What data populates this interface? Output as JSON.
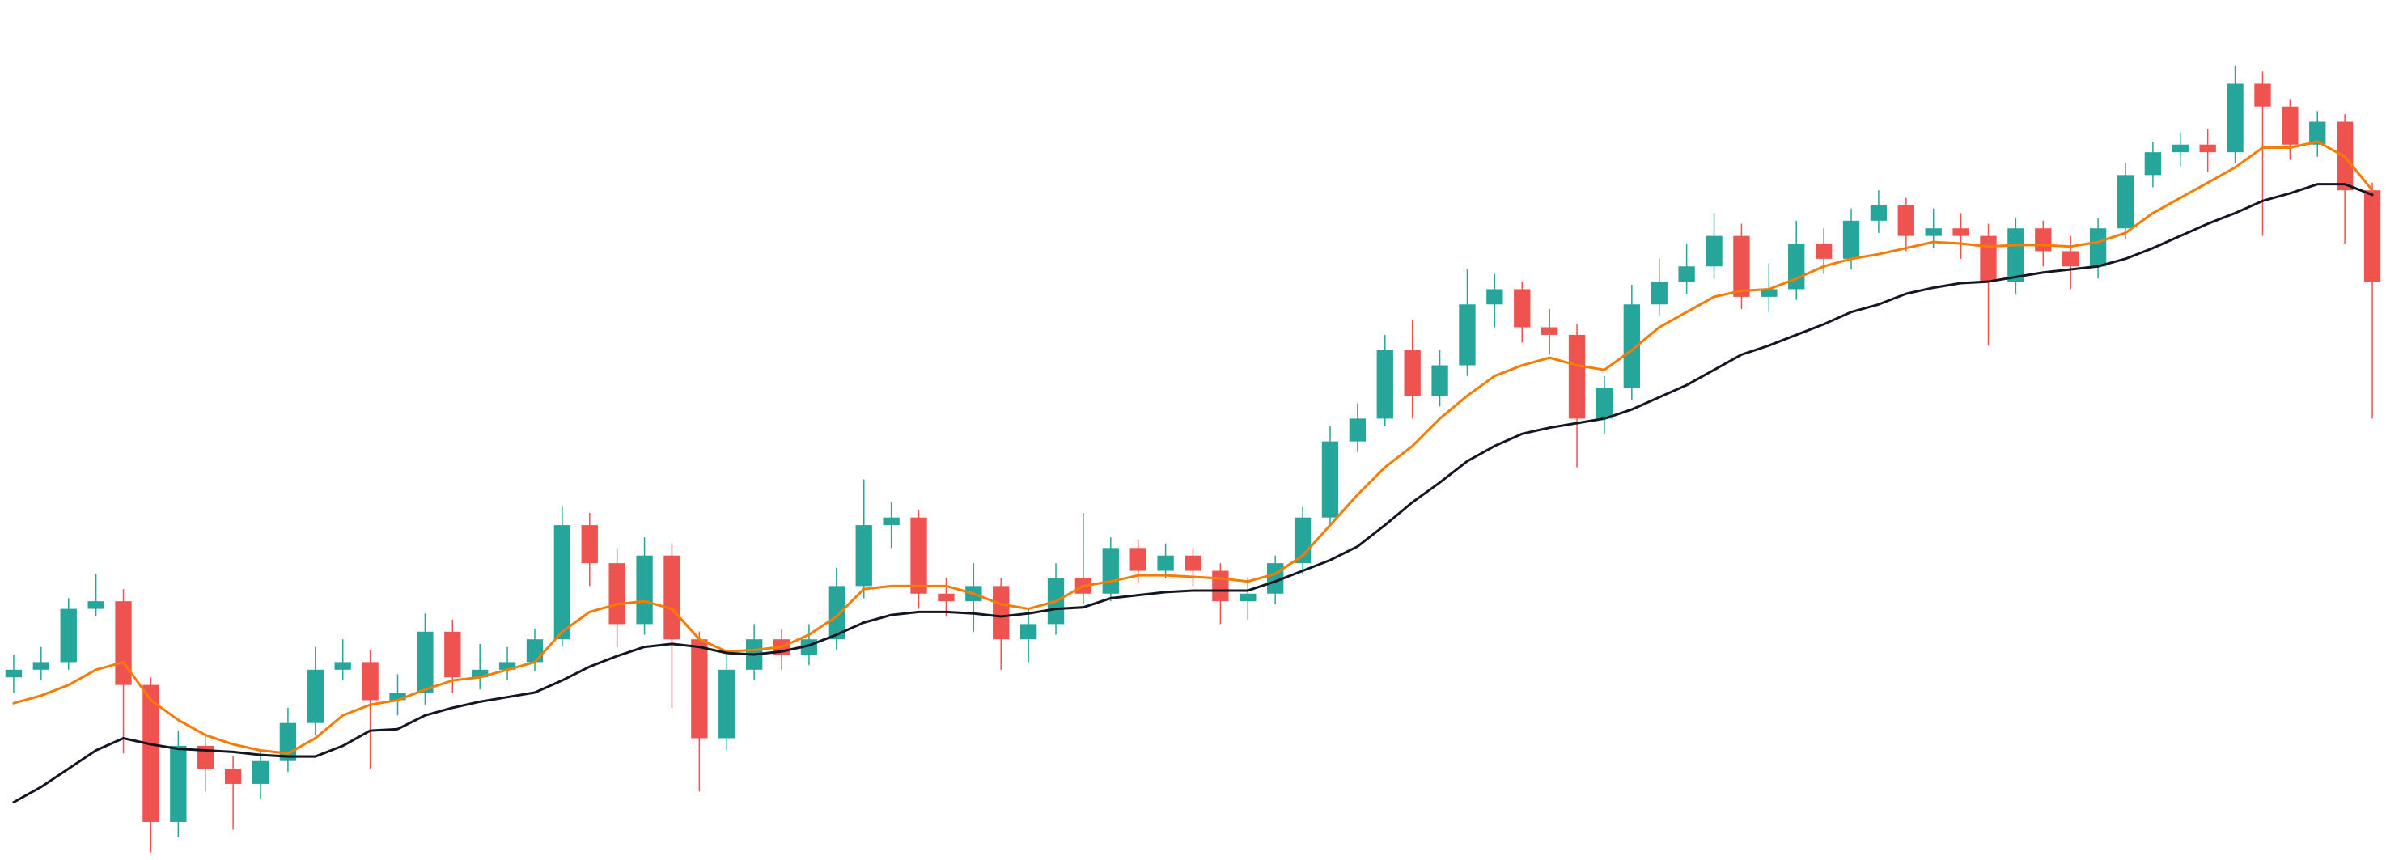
{
  "chart_data": {
    "type": "candlestick",
    "ylim": [
      0,
      565
    ],
    "up_color": "#26a69a",
    "down_color": "#ef5350",
    "open": [
      120,
      125,
      130,
      165,
      170,
      115,
      25,
      75,
      60,
      50,
      65,
      90,
      125,
      130,
      105,
      110,
      150,
      120,
      125,
      130,
      145,
      220,
      195,
      155,
      200,
      145,
      80,
      125,
      145,
      135,
      145,
      180,
      220,
      225,
      175,
      170,
      180,
      145,
      155,
      185,
      175,
      205,
      190,
      200,
      190,
      170,
      175,
      195,
      225,
      275,
      290,
      335,
      305,
      325,
      365,
      375,
      350,
      345,
      290,
      310,
      365,
      380,
      390,
      410,
      370,
      375,
      405,
      395,
      420,
      430,
      410,
      415,
      410,
      380,
      415,
      400,
      390,
      415,
      450,
      465,
      470,
      465,
      510,
      495,
      470,
      485,
      440
    ],
    "high": [
      135,
      140,
      172,
      188,
      178,
      120,
      85,
      82,
      68,
      72,
      100,
      140,
      145,
      138,
      122,
      162,
      158,
      142,
      140,
      152,
      232,
      228,
      205,
      212,
      208,
      150,
      135,
      155,
      152,
      155,
      192,
      250,
      235,
      230,
      185,
      195,
      185,
      165,
      195,
      228,
      212,
      210,
      208,
      205,
      195,
      185,
      200,
      232,
      285,
      300,
      345,
      355,
      335,
      388,
      385,
      380,
      362,
      352,
      318,
      378,
      395,
      405,
      425,
      418,
      392,
      420,
      415,
      428,
      440,
      435,
      428,
      425,
      418,
      422,
      420,
      410,
      422,
      458,
      472,
      478,
      480,
      522,
      518,
      500,
      492,
      490,
      445
    ],
    "low": [
      110,
      118,
      125,
      160,
      70,
      5,
      15,
      45,
      20,
      40,
      58,
      82,
      118,
      60,
      95,
      102,
      110,
      112,
      118,
      124,
      140,
      180,
      140,
      148,
      100,
      45,
      72,
      118,
      125,
      128,
      138,
      172,
      205,
      165,
      160,
      150,
      125,
      130,
      148,
      168,
      170,
      182,
      185,
      180,
      155,
      158,
      168,
      188,
      220,
      268,
      285,
      290,
      298,
      318,
      350,
      340,
      332,
      258,
      280,
      302,
      358,
      372,
      382,
      362,
      360,
      368,
      385,
      388,
      412,
      400,
      402,
      395,
      338,
      372,
      390,
      375,
      382,
      408,
      442,
      455,
      452,
      458,
      410,
      460,
      462,
      405,
      290
    ],
    "close": [
      125,
      130,
      165,
      170,
      115,
      25,
      75,
      60,
      50,
      65,
      90,
      125,
      130,
      105,
      110,
      150,
      120,
      125,
      130,
      145,
      220,
      195,
      155,
      200,
      145,
      80,
      125,
      145,
      135,
      145,
      180,
      220,
      225,
      175,
      170,
      180,
      145,
      155,
      185,
      175,
      205,
      190,
      200,
      190,
      170,
      175,
      195,
      225,
      275,
      290,
      335,
      305,
      325,
      365,
      375,
      350,
      345,
      290,
      310,
      365,
      380,
      390,
      410,
      370,
      375,
      405,
      395,
      420,
      430,
      410,
      415,
      410,
      380,
      415,
      400,
      390,
      415,
      450,
      465,
      470,
      465,
      510,
      495,
      470,
      485,
      440,
      380
    ],
    "overlays": [
      {
        "color": "#f57c00",
        "values": [
          103,
          108,
          115,
          125,
          130,
          105,
          92,
          82,
          76,
          72,
          70,
          80,
          95,
          102,
          105,
          112,
          118,
          120,
          125,
          130,
          150,
          163,
          168,
          170,
          165,
          145,
          137,
          138,
          140,
          148,
          160,
          178,
          180,
          180,
          180,
          175,
          168,
          165,
          170,
          180,
          183,
          187,
          187,
          186,
          185,
          183,
          188,
          200,
          220,
          240,
          258,
          272,
          290,
          305,
          318,
          325,
          330,
          325,
          322,
          335,
          350,
          360,
          370,
          374,
          375,
          382,
          390,
          395,
          398,
          402,
          406,
          405,
          403,
          404,
          404,
          403,
          406,
          412,
          425,
          435,
          445,
          455,
          468,
          468,
          472,
          462,
          440
        ]
      },
      {
        "color": "#131722",
        "values": [
          38,
          48,
          60,
          72,
          80,
          76,
          73,
          72,
          71,
          69,
          68,
          68,
          75,
          85,
          86,
          95,
          100,
          104,
          107,
          110,
          118,
          127,
          134,
          140,
          142,
          140,
          136,
          135,
          137,
          141,
          148,
          156,
          161,
          163,
          163,
          162,
          160,
          162,
          165,
          166,
          172,
          174,
          176,
          177,
          177,
          177,
          183,
          190,
          197,
          206,
          220,
          235,
          248,
          262,
          272,
          280,
          284,
          287,
          290,
          296,
          304,
          312,
          322,
          332,
          338,
          345,
          352,
          360,
          365,
          372,
          376,
          379,
          380,
          383,
          386,
          388,
          390,
          395,
          402,
          410,
          418,
          425,
          433,
          438,
          444,
          444,
          437
        ]
      }
    ]
  }
}
